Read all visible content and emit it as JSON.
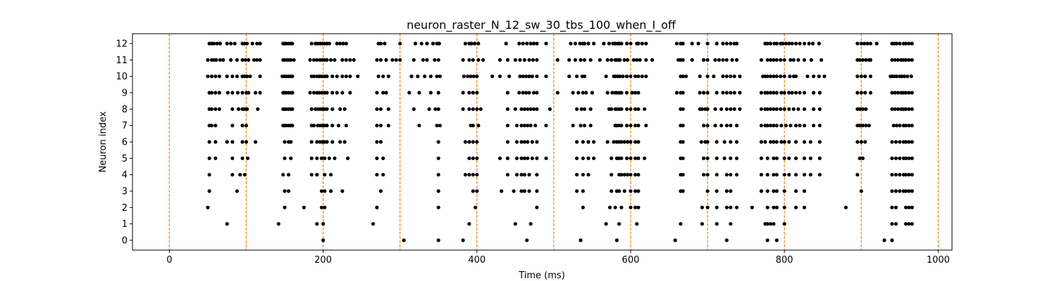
{
  "chart_data": {
    "type": "scatter",
    "title": "neuron_raster_N_12_sw_30_tbs_100_when_I_off",
    "xlabel": "Time (ms)",
    "ylabel": "Neuron index",
    "xlim": [
      -48,
      1018
    ],
    "ylim": [
      -0.6,
      12.6
    ],
    "xticks": [
      0,
      200,
      400,
      600,
      800,
      1000
    ],
    "yticks": [
      0,
      1,
      2,
      3,
      4,
      5,
      6,
      7,
      8,
      9,
      10,
      11,
      12
    ],
    "grid": false,
    "marker_color": "#000000",
    "vline_color": "#ff7f0e",
    "vlines": [
      0,
      100,
      200,
      300,
      400,
      500,
      600,
      700,
      800,
      900,
      1000
    ],
    "spike_series": [
      {
        "neuron": 12,
        "times": [
          52,
          55,
          58,
          62,
          66,
          75,
          80,
          85,
          95,
          98,
          101,
          108,
          114,
          118,
          148,
          150,
          152,
          155,
          158,
          160,
          185,
          190,
          193,
          196,
          199,
          202,
          205,
          208,
          218,
          222,
          226,
          230,
          272,
          275,
          280,
          300,
          320,
          328,
          335,
          343,
          348,
          351,
          385,
          390,
          393,
          397,
          402,
          438,
          455,
          460,
          465,
          470,
          474,
          478,
          490,
          522,
          528,
          534,
          538,
          540,
          545,
          552,
          565,
          572,
          577,
          580,
          583,
          585,
          588,
          595,
          600,
          608,
          610,
          615,
          620,
          660,
          665,
          668,
          680,
          688,
          700,
          712,
          720,
          725,
          730,
          735,
          738,
          775,
          778,
          782,
          787,
          790,
          795,
          798,
          802,
          806,
          810,
          815,
          820,
          826,
          832,
          837,
          845,
          895,
          900,
          904,
          908,
          912,
          920,
          940,
          943,
          946,
          950,
          955,
          958,
          962,
          966
        ]
      },
      {
        "neuron": 11,
        "times": [
          50,
          55,
          58,
          61,
          66,
          70,
          80,
          88,
          95,
          99,
          103,
          110,
          114,
          118,
          148,
          150,
          153,
          155,
          158,
          162,
          183,
          188,
          192,
          196,
          199,
          202,
          205,
          210,
          215,
          225,
          230,
          235,
          240,
          270,
          275,
          282,
          290,
          295,
          300,
          318,
          330,
          335,
          345,
          350,
          382,
          390,
          395,
          402,
          408,
          430,
          440,
          450,
          456,
          462,
          468,
          473,
          478,
          505,
          520,
          528,
          535,
          540,
          548,
          560,
          570,
          575,
          580,
          582,
          584,
          586,
          592,
          596,
          604,
          608,
          612,
          620,
          628,
          662,
          665,
          668,
          680,
          695,
          700,
          710,
          715,
          720,
          725,
          732,
          738,
          770,
          778,
          782,
          786,
          790,
          795,
          800,
          808,
          812,
          818,
          826,
          835,
          848,
          895,
          898,
          902,
          906,
          910,
          912,
          940,
          944,
          948,
          952,
          955,
          958,
          962,
          966
        ]
      },
      {
        "neuron": 10,
        "times": [
          50,
          55,
          60,
          65,
          75,
          82,
          88,
          95,
          98,
          101,
          105,
          118,
          147,
          150,
          152,
          155,
          158,
          160,
          185,
          188,
          192,
          195,
          198,
          202,
          205,
          212,
          218,
          225,
          230,
          235,
          245,
          272,
          278,
          285,
          315,
          323,
          332,
          340,
          348,
          352,
          383,
          388,
          392,
          396,
          400,
          420,
          430,
          442,
          456,
          460,
          464,
          468,
          472,
          478,
          490,
          520,
          530,
          537,
          540,
          568,
          578,
          580,
          583,
          586,
          590,
          595,
          600,
          606,
          610,
          615,
          620,
          665,
          668,
          672,
          690,
          700,
          708,
          720,
          725,
          730,
          735,
          742,
          772,
          775,
          778,
          782,
          786,
          790,
          795,
          800,
          807,
          812,
          815,
          830,
          838,
          845,
          852,
          895,
          900,
          905,
          912,
          938,
          940,
          943,
          946,
          950,
          953,
          956,
          960,
          965
        ]
      },
      {
        "neuron": 9,
        "times": [
          52,
          55,
          60,
          65,
          76,
          82,
          89,
          95,
          100,
          103,
          112,
          118,
          148,
          150,
          152,
          155,
          158,
          160,
          183,
          188,
          192,
          195,
          198,
          202,
          205,
          212,
          218,
          225,
          235,
          270,
          278,
          282,
          312,
          325,
          340,
          350,
          382,
          390,
          395,
          400,
          440,
          455,
          460,
          464,
          468,
          474,
          478,
          505,
          525,
          532,
          538,
          542,
          550,
          570,
          576,
          580,
          582,
          585,
          588,
          595,
          602,
          606,
          610,
          660,
          665,
          668,
          690,
          695,
          700,
          712,
          720,
          725,
          730,
          735,
          742,
          770,
          775,
          778,
          782,
          786,
          790,
          796,
          800,
          806,
          810,
          815,
          820,
          826,
          838,
          846,
          895,
          900,
          905,
          912,
          940,
          944,
          948,
          952,
          955,
          958,
          962,
          966
        ]
      },
      {
        "neuron": 8,
        "times": [
          52,
          55,
          60,
          65,
          82,
          90,
          95,
          98,
          101,
          115,
          148,
          150,
          152,
          155,
          158,
          160,
          185,
          190,
          193,
          196,
          199,
          202,
          205,
          212,
          222,
          228,
          270,
          275,
          285,
          318,
          338,
          346,
          350,
          382,
          390,
          395,
          400,
          405,
          440,
          450,
          458,
          462,
          466,
          470,
          474,
          478,
          495,
          530,
          536,
          540,
          548,
          572,
          575,
          580,
          582,
          585,
          588,
          595,
          600,
          606,
          610,
          618,
          665,
          668,
          690,
          693,
          697,
          700,
          710,
          718,
          725,
          730,
          735,
          742,
          770,
          775,
          778,
          782,
          786,
          790,
          795,
          800,
          806,
          812,
          818,
          826,
          838,
          846,
          895,
          898,
          902,
          906,
          940,
          944,
          948,
          952,
          955,
          958,
          962,
          966
        ]
      },
      {
        "neuron": 7,
        "times": [
          52,
          55,
          60,
          82,
          95,
          100,
          148,
          150,
          152,
          155,
          158,
          160,
          185,
          188,
          193,
          196,
          199,
          202,
          205,
          212,
          220,
          230,
          270,
          275,
          285,
          325,
          348,
          352,
          392,
          395,
          402,
          440,
          452,
          458,
          462,
          466,
          470,
          476,
          490,
          525,
          535,
          540,
          548,
          580,
          582,
          585,
          588,
          595,
          600,
          606,
          610,
          620,
          665,
          668,
          695,
          700,
          710,
          718,
          725,
          730,
          738,
          770,
          775,
          778,
          782,
          786,
          790,
          796,
          802,
          808,
          815,
          820,
          826,
          838,
          846,
          895,
          898,
          902,
          906,
          910,
          942,
          946,
          950,
          955,
          958,
          962,
          966
        ]
      },
      {
        "neuron": 6,
        "times": [
          52,
          60,
          75,
          82,
          95,
          100,
          112,
          150,
          155,
          158,
          185,
          192,
          196,
          199,
          202,
          205,
          212,
          222,
          228,
          270,
          275,
          350,
          385,
          390,
          395,
          400,
          440,
          452,
          458,
          462,
          466,
          472,
          478,
          530,
          538,
          545,
          552,
          570,
          578,
          582,
          585,
          588,
          592,
          596,
          600,
          606,
          610,
          665,
          668,
          692,
          697,
          700,
          712,
          722,
          730,
          738,
          770,
          775,
          782,
          786,
          790,
          796,
          800,
          806,
          815,
          826,
          834,
          846,
          895,
          900,
          905,
          940,
          945,
          950,
          955,
          958,
          962,
          966
        ]
      },
      {
        "neuron": 5,
        "times": [
          52,
          60,
          82,
          95,
          102,
          150,
          158,
          185,
          192,
          198,
          202,
          208,
          215,
          232,
          270,
          278,
          350,
          390,
          395,
          400,
          430,
          440,
          452,
          458,
          462,
          466,
          472,
          478,
          490,
          530,
          538,
          545,
          552,
          575,
          582,
          585,
          588,
          595,
          600,
          606,
          610,
          618,
          665,
          668,
          695,
          700,
          712,
          722,
          730,
          738,
          770,
          778,
          786,
          790,
          800,
          806,
          815,
          826,
          834,
          846,
          898,
          902,
          940,
          945,
          950,
          955,
          958,
          962,
          966
        ]
      },
      {
        "neuron": 4,
        "times": [
          52,
          82,
          92,
          98,
          148,
          155,
          185,
          192,
          202,
          210,
          270,
          278,
          350,
          385,
          390,
          395,
          400,
          440,
          452,
          458,
          462,
          468,
          478,
          530,
          538,
          545,
          575,
          585,
          588,
          592,
          596,
          600,
          606,
          610,
          665,
          668,
          695,
          700,
          712,
          725,
          730,
          738,
          770,
          778,
          786,
          790,
          800,
          806,
          815,
          826,
          834,
          846,
          895,
          940,
          945,
          950,
          955,
          958,
          962,
          966
        ]
      },
      {
        "neuron": 3,
        "times": [
          52,
          88,
          150,
          155,
          198,
          202,
          210,
          225,
          275,
          350,
          395,
          400,
          432,
          448,
          458,
          462,
          468,
          478,
          530,
          538,
          575,
          582,
          585,
          592,
          600,
          606,
          610,
          665,
          668,
          700,
          712,
          725,
          730,
          770,
          778,
          786,
          790,
          800,
          815,
          826,
          900,
          940,
          945,
          950,
          955,
          958,
          962,
          966
        ]
      },
      {
        "neuron": 2,
        "times": [
          50,
          150,
          175,
          198,
          202,
          270,
          350,
          398,
          478,
          538,
          573,
          580,
          588,
          600,
          606,
          610,
          693,
          700,
          712,
          725,
          730,
          738,
          758,
          778,
          786,
          790,
          800,
          815,
          826,
          880,
          940,
          945,
          958,
          962,
          966
        ]
      },
      {
        "neuron": 1,
        "times": [
          75,
          142,
          192,
          200,
          265,
          390,
          450,
          470,
          568,
          585,
          608,
          665,
          693,
          712,
          730,
          775,
          778,
          782,
          786,
          800,
          940,
          945,
          958,
          962,
          966
        ]
      },
      {
        "neuron": 0,
        "times": [
          200,
          305,
          350,
          382,
          465,
          535,
          582,
          658,
          725,
          778,
          790,
          930,
          940
        ]
      }
    ]
  }
}
